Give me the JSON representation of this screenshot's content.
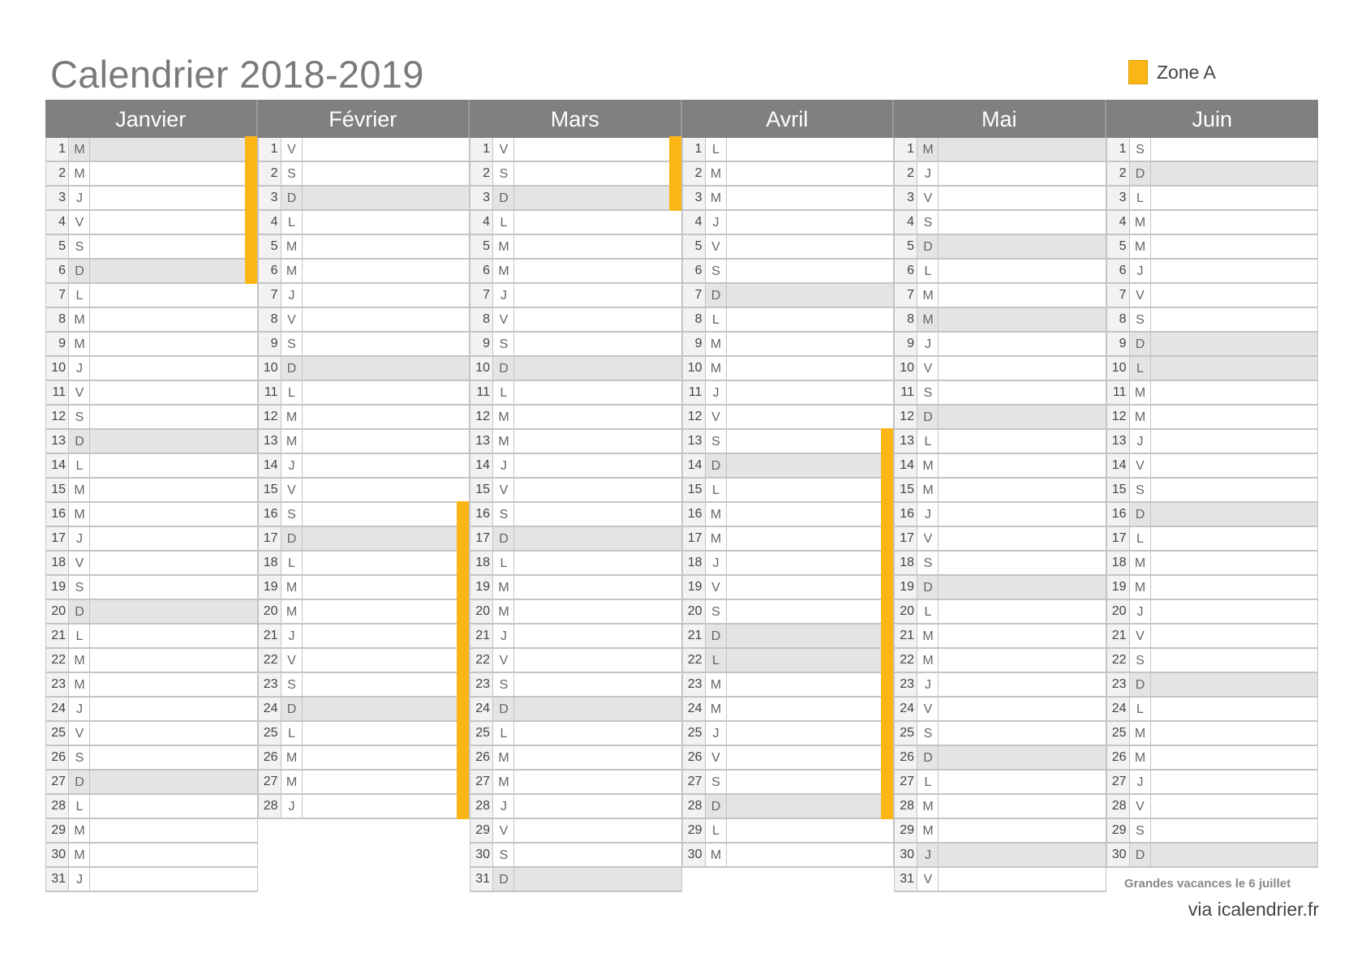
{
  "title": "Calendrier 2018-2019",
  "legend": {
    "label": "Zone A",
    "color": "#fbb616"
  },
  "months": [
    {
      "name": "Janvier",
      "letters": "MMJVSDLMMJVSDLMMJVSDLMMJVSDLMMJ",
      "grey": [
        1,
        6,
        13,
        20,
        27
      ],
      "holiday": [
        1,
        2,
        3,
        4,
        5,
        6
      ]
    },
    {
      "name": "Février",
      "letters": "VSDLMMJVSDLMMJVSDLMMJVSDLMMJ",
      "grey": [
        3,
        10,
        17,
        24
      ],
      "holiday": [
        16,
        17,
        18,
        19,
        20,
        21,
        22,
        23,
        24,
        25,
        26,
        27,
        28
      ]
    },
    {
      "name": "Mars",
      "letters": "VSDLMMJVSDLMMJVSDLMMJVSDLMMJVSD",
      "grey": [
        3,
        10,
        17,
        24,
        31
      ],
      "holiday": [
        1,
        2,
        3
      ]
    },
    {
      "name": "Avril",
      "letters": "LMMJVSDLMMJVSDLMMJVSDLMMJVSDLM",
      "grey": [
        7,
        14,
        21,
        22,
        28
      ],
      "holiday": [
        13,
        14,
        15,
        16,
        17,
        18,
        19,
        20,
        21,
        22,
        23,
        24,
        25,
        26,
        27,
        28
      ]
    },
    {
      "name": "Mai",
      "letters": "MJVSDLMMJVSDLMMJVSDLMMJVSDLMMJV",
      "grey": [
        1,
        5,
        8,
        12,
        19,
        26,
        30
      ],
      "holiday": []
    },
    {
      "name": "Juin",
      "letters": "SDLMMJVSDLMMJVSDLMMJVSDLMMJVSD",
      "grey": [
        2,
        9,
        10,
        16,
        23,
        30
      ],
      "holiday": []
    }
  ],
  "note": "Grandes vacances le 6 juillet",
  "credit": "via icalendrier.fr"
}
